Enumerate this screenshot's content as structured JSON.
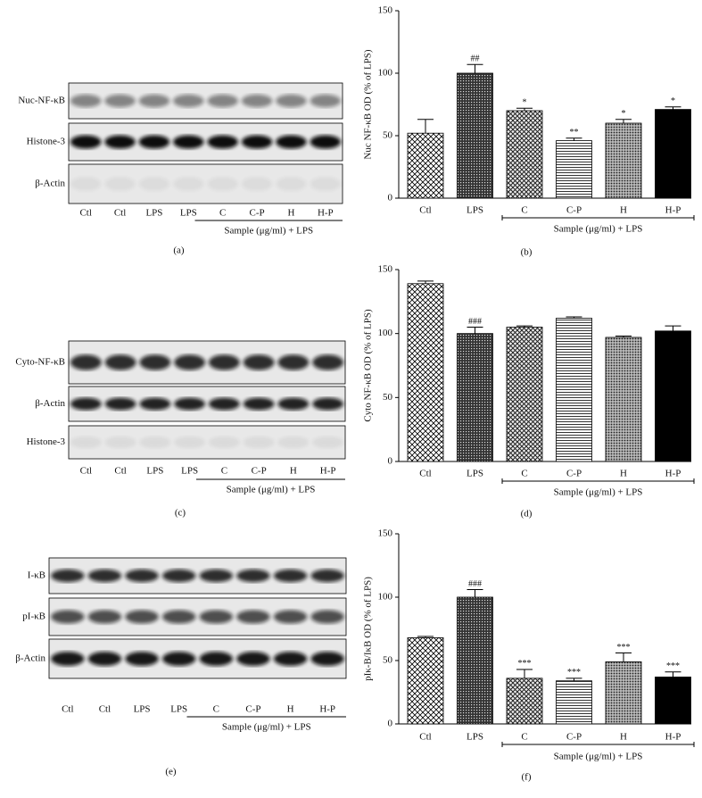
{
  "chart_data": [
    {
      "type": "bar",
      "ylabel": "Nuc NF-κB OD (% of LPS)",
      "categories": [
        "Ctl",
        "LPS",
        "C",
        "C-P",
        "H",
        "H-P"
      ],
      "values": [
        52,
        100,
        70,
        46,
        60,
        71
      ],
      "errors": [
        11,
        7,
        2,
        2,
        3,
        2
      ],
      "annotations": [
        null,
        "##",
        "*",
        "**",
        "*",
        "*"
      ],
      "fills": [
        "crosshatch",
        "dense",
        "diamond",
        "hlines",
        "dots",
        "solid"
      ],
      "ylim": [
        0,
        150
      ],
      "yticks": [
        0,
        50,
        100,
        150
      ],
      "group_label": "Sample (μg/ml) + LPS",
      "caption": "(b)"
    },
    {
      "type": "bar",
      "ylabel": "Cyto NF-κB OD (% of LPS)",
      "categories": [
        "Ctl",
        "LPS",
        "C",
        "C-P",
        "H",
        "H-P"
      ],
      "values": [
        139,
        100,
        105,
        112,
        97,
        102
      ],
      "errors": [
        2,
        5,
        1,
        1,
        1,
        4
      ],
      "annotations": [
        null,
        "###",
        null,
        null,
        null,
        null
      ],
      "fills": [
        "crosshatch",
        "dense",
        "diamond",
        "hlines",
        "dots",
        "solid"
      ],
      "ylim": [
        0,
        150
      ],
      "yticks": [
        0,
        50,
        100,
        150
      ],
      "group_label": "Sample (μg/ml) + LPS",
      "caption": "(d)"
    },
    {
      "type": "bar",
      "ylabel": "pIκ-B/IκB OD (% of LPS)",
      "categories": [
        "Ctl",
        "LPS",
        "C",
        "C-P",
        "H",
        "H-P"
      ],
      "values": [
        68,
        100,
        36,
        34,
        49,
        37
      ],
      "errors": [
        1,
        6,
        7,
        2,
        7,
        4
      ],
      "annotations": [
        null,
        "###",
        "***",
        "***",
        "***",
        "***"
      ],
      "fills": [
        "crosshatch",
        "dense",
        "diamond",
        "hlines",
        "dots",
        "solid"
      ],
      "ylim": [
        0,
        150
      ],
      "yticks": [
        0,
        50,
        100,
        150
      ],
      "group_label": "Sample (μg/ml) + LPS",
      "caption": "(f)"
    }
  ],
  "blots": [
    {
      "rows": [
        "Nuc-NF-κB",
        "Histone-3",
        "β-Actin"
      ],
      "lanes": [
        "Ctl",
        "Ctl",
        "LPS",
        "LPS",
        "C",
        "C-P",
        "H",
        "H-P"
      ],
      "group_label": "Sample (μg/ml) + LPS",
      "caption": "(a)"
    },
    {
      "rows": [
        "Cyto-NF-κB",
        "β-Actin",
        "Histone-3"
      ],
      "lanes": [
        "Ctl",
        "Ctl",
        "LPS",
        "LPS",
        "C",
        "C-P",
        "H",
        "H-P"
      ],
      "group_label": "Sample (μg/ml) + LPS",
      "caption": "(c)"
    },
    {
      "rows": [
        "I-κB",
        "pI-κB",
        "β-Actin"
      ],
      "lanes": [
        "Ctl",
        "Ctl",
        "LPS",
        "LPS",
        "C",
        "C-P",
        "H",
        "H-P"
      ],
      "group_label": "Sample (μg/ml) + LPS",
      "caption": "(e)"
    }
  ]
}
